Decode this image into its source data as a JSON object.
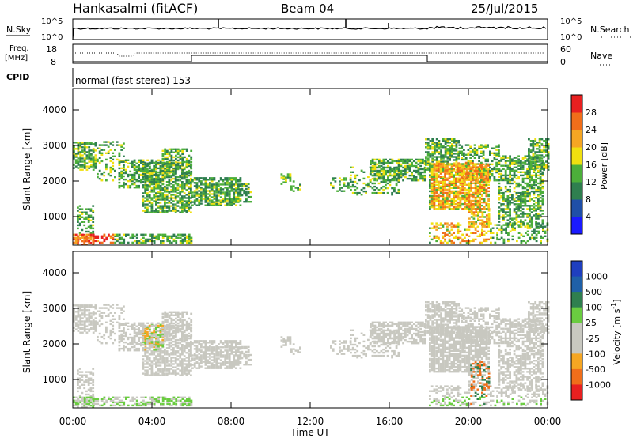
{
  "header": {
    "station": "Hankasalmi (fitACF)",
    "beam": "Beam 04",
    "date": "25/Jul/2015"
  },
  "noise_panel": {
    "left_label": "N.Sky",
    "right_label": "N.Search",
    "ticks_left": [
      "10^5",
      "10^0"
    ],
    "ticks_right": [
      "10^5",
      "10^0"
    ]
  },
  "freq_panel": {
    "left_label_1": "Freq.",
    "left_label_2": "[MHz]",
    "left_ticks": [
      "18",
      "8"
    ],
    "right_label": "Nave",
    "right_ticks": [
      "60",
      "0"
    ],
    "cpid_label": "CPID",
    "cpid_text": "normal (fast stereo) 153"
  },
  "colors": {
    "power_scale": [
      "#1a1aff",
      "#1f4fa8",
      "#2f7f4f",
      "#4caf3a",
      "#f0e010",
      "#f5a623",
      "#f06e1a",
      "#e82020"
    ],
    "velocity_scale": [
      "#1f3fbf",
      "#1f60a8",
      "#2f7f4f",
      "#6acc40",
      "#c8c8c0",
      "#c8c8c0",
      "#f5a623",
      "#f06e1a",
      "#e82020"
    ]
  },
  "chart_data": [
    {
      "type": "heatmap",
      "title": "",
      "ylabel": "Slant Range [km]",
      "ylim": [
        200,
        4600
      ],
      "yticks": [
        "4000",
        "3000",
        "2000",
        "1000"
      ],
      "colorbar_label": "Power [dB]",
      "colorbar_ticks": [
        "28",
        "24",
        "20",
        "16",
        "12",
        "8",
        "4"
      ],
      "colorbar_range": [
        0,
        32
      ]
    },
    {
      "type": "heatmap",
      "title": "",
      "ylabel": "Slant Range [km]",
      "ylim": [
        200,
        4600
      ],
      "yticks": [
        "4000",
        "3000",
        "2000",
        "1000"
      ],
      "colorbar_label": "Velocity [m s",
      "colorbar_unit_sup": "-1",
      "colorbar_unit_close": "]",
      "colorbar_ticks": [
        "1000",
        "500",
        "100",
        "25",
        "-25",
        "-100",
        "-500",
        "-1000"
      ]
    }
  ],
  "xaxis": {
    "ticks": [
      "00:00",
      "04:00",
      "08:00",
      "12:00",
      "16:00",
      "20:00",
      "00:00"
    ],
    "label": "Time UT",
    "range_hours": [
      0,
      24
    ]
  }
}
